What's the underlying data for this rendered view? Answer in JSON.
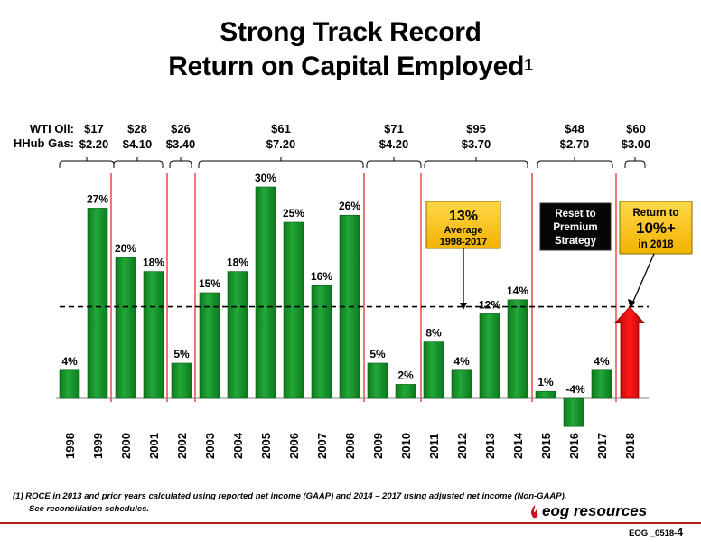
{
  "title_line1": "Strong Track Record",
  "title_line2": "Return on Capital Employed",
  "title_sup": "1",
  "row_labels": {
    "oil": "WTI Oil:",
    "gas": "HHub Gas:"
  },
  "periods": [
    {
      "oil": "$17",
      "gas": "$2.20"
    },
    {
      "oil": "$28",
      "gas": "$4.10"
    },
    {
      "oil": "$26",
      "gas": "$3.40"
    },
    {
      "oil": "$61",
      "gas": "$7.20"
    },
    {
      "oil": "$71",
      "gas": "$4.20"
    },
    {
      "oil": "$95",
      "gas": "$3.70"
    },
    {
      "oil": "$48",
      "gas": "$2.70"
    },
    {
      "oil": "$60",
      "gas": "$3.00"
    }
  ],
  "chart_data": {
    "type": "bar",
    "title": "Return on Capital Employed",
    "categories": [
      "1998",
      "1999",
      "2000",
      "2001",
      "2002",
      "2003",
      "2004",
      "2005",
      "2006",
      "2007",
      "2008",
      "2009",
      "2010",
      "2011",
      "2012",
      "2013",
      "2014",
      "2015",
      "2016",
      "2017",
      "2018"
    ],
    "values": [
      4,
      27,
      20,
      18,
      5,
      15,
      18,
      30,
      25,
      16,
      26,
      5,
      2,
      8,
      4,
      12,
      14,
      1,
      -4,
      4,
      null
    ],
    "value_labels": [
      "4%",
      "27%",
      "20%",
      "18%",
      "5%",
      "15%",
      "18%",
      "30%",
      "25%",
      "16%",
      "26%",
      "5%",
      "2%",
      "8%",
      "4%",
      "12%",
      "14%",
      "1%",
      "-4%",
      "4%",
      ""
    ],
    "bar_color": "#1a9a2e",
    "target_arrow": {
      "category": "2018",
      "value": 13,
      "color": "#e60000"
    },
    "average_line": {
      "value": 13,
      "style": "dashed"
    },
    "period_separators_color": "#e0302a",
    "ylim": [
      -5,
      31
    ],
    "grid": false
  },
  "callouts": {
    "average": {
      "big": "13%",
      "line2": "Average",
      "line3": "1998-2017"
    },
    "reset": {
      "line1": "Reset to",
      "line2": "Premium",
      "line3": "Strategy"
    },
    "return": {
      "line1": "Return to",
      "big": "10%+",
      "line3": "in 2018"
    }
  },
  "footnote_line1": "(1) ROCE in 2013 and prior years calculated using reported net income (GAAP) and 2014 – 2017 using adjusted net income (Non-GAAP).",
  "footnote_line2": "See reconciliation schedules.",
  "logo_text": "eog resources",
  "slide_id_prefix": "EOG _0518-",
  "slide_id_number": "4"
}
